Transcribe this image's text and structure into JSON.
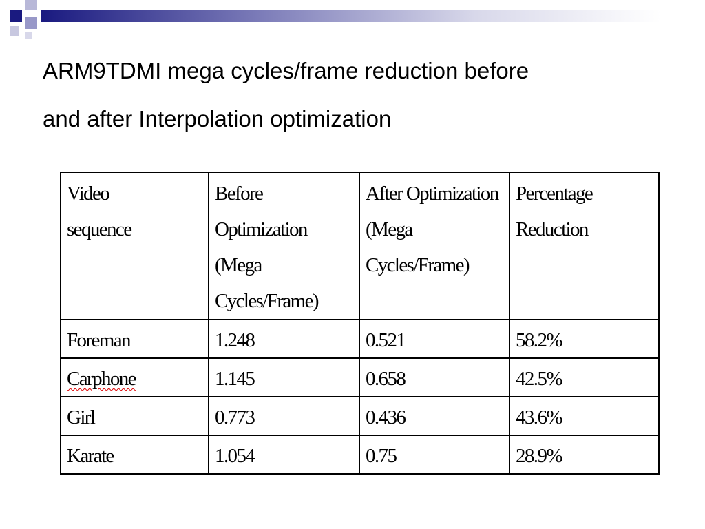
{
  "header": {
    "title_lines": [
      "ARM9TDMI mega cycles/frame reduction before",
      "and after Interpolation optimization"
    ]
  },
  "table": {
    "columns": [
      "Video\nsequence",
      "Before Optimization\n(Mega\nCycles/Frame)",
      "After Optimization\n(Mega\nCycles/Frame)",
      "Percentage\nReduction"
    ],
    "rows": [
      [
        "Foreman",
        "1.248",
        "0.521",
        "58.2%"
      ],
      [
        "Carphone",
        "1.145",
        "0.658",
        "42.5%"
      ],
      [
        "Girl",
        "0.773",
        "0.436",
        "43.6%"
      ],
      [
        "Karate",
        "1.054",
        "0.75",
        "28.9%"
      ]
    ]
  }
}
